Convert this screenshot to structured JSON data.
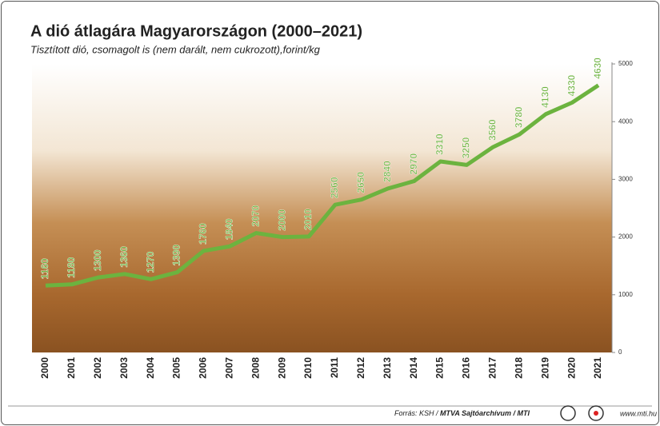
{
  "chart_data": {
    "type": "line",
    "title": "A dió átlagára Magyarországon (2000–2021)",
    "subtitle": "Tisztított dió, csomagolt is (nem darált, nem cukrozott),forint/kg",
    "categories": [
      "2000",
      "2001",
      "2002",
      "2003",
      "2004",
      "2005",
      "2006",
      "2007",
      "2008",
      "2009",
      "2010",
      "2011",
      "2012",
      "2013",
      "2014",
      "2015",
      "2016",
      "2017",
      "2018",
      "2019",
      "2020",
      "2021"
    ],
    "series": [
      {
        "name": null,
        "color": "#6cb33f",
        "values": [
          1160,
          1180,
          1300,
          1360,
          1270,
          1390,
          1760,
          1840,
          2070,
          2000,
          2010,
          2560,
          2650,
          2840,
          2970,
          3310,
          3250,
          3560,
          3780,
          4130,
          4330,
          4630
        ]
      }
    ],
    "ylim": [
      0,
      5000
    ],
    "yticks": [
      0,
      1000,
      2000,
      3000,
      4000,
      5000
    ],
    "grid": false
  },
  "footer": {
    "source_prefix": "Forrás: KSH / ",
    "source_bold": "MTVA Sajtóarchívum / MTI",
    "website": "www.mti.hu"
  }
}
